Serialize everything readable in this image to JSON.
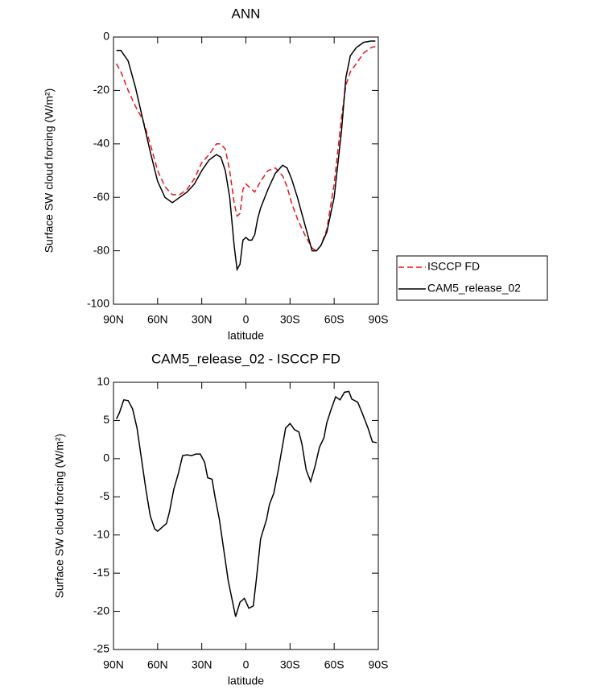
{
  "chart_data": [
    {
      "type": "line",
      "title": "ANN",
      "xlabel": "latitude",
      "ylabel": "Surface SW cloud forcing (W/m²)",
      "x": [
        88,
        85,
        80,
        75,
        70,
        65,
        60,
        55,
        50,
        45,
        40,
        35,
        30,
        25,
        20,
        17,
        14,
        11,
        8,
        6,
        4,
        2,
        0,
        -2,
        -4,
        -6,
        -8,
        -10,
        -15,
        -20,
        -25,
        -28,
        -31,
        -35,
        -40,
        -45,
        -48,
        -51,
        -55,
        -60,
        -65,
        -68,
        -71,
        -75,
        -80,
        -85,
        -88
      ],
      "series": [
        {
          "name": "ISCCP FD",
          "color": "#e8141e",
          "dash": true,
          "values": [
            -10,
            -13,
            -20,
            -26,
            -31,
            -40,
            -50,
            -56,
            -59,
            -59,
            -57,
            -53,
            -47,
            -44,
            -40,
            -40,
            -42,
            -50,
            -62,
            -67,
            -66,
            -57,
            -55,
            -56,
            -57,
            -58,
            -56,
            -54,
            -50,
            -49,
            -52,
            -56,
            -62,
            -68,
            -74,
            -79,
            -80,
            -78,
            -72,
            -55,
            -30,
            -18,
            -13,
            -10,
            -6,
            -4,
            -3.5
          ]
        },
        {
          "name": "CAM5_release_02",
          "color": "#000000",
          "dash": false,
          "values": [
            -5,
            -5,
            -9,
            -19,
            -31,
            -43,
            -54,
            -60,
            -62,
            -60,
            -58,
            -55,
            -50,
            -46,
            -44,
            -45,
            -50,
            -60,
            -78,
            -87,
            -85,
            -76,
            -75,
            -76,
            -76,
            -74,
            -68,
            -64,
            -57,
            -51,
            -48,
            -49,
            -53,
            -60,
            -70,
            -80,
            -80,
            -78,
            -73,
            -60,
            -35,
            -15,
            -7,
            -4,
            -2,
            -1.5,
            -1.5
          ]
        }
      ],
      "xlim": [
        90,
        -90
      ],
      "xticks": [
        {
          "value": 90,
          "label": "90N"
        },
        {
          "value": 60,
          "label": "60N"
        },
        {
          "value": 30,
          "label": "30N"
        },
        0,
        {
          "value": -30,
          "label": "30S"
        },
        {
          "value": -60,
          "label": "60S"
        },
        {
          "value": -90,
          "label": "90S"
        }
      ],
      "ylim": [
        -100,
        0
      ],
      "yticks": [
        -100,
        -80,
        -60,
        -40,
        -20,
        0
      ],
      "legend": "right"
    },
    {
      "type": "line",
      "title": "CAM5_release_02 - ISCCP FD",
      "xlabel": "latitude",
      "ylabel": "Surface SW cloud forcing (W/m²)",
      "x": [
        88,
        86,
        83,
        80,
        77,
        74,
        71,
        68,
        65,
        62,
        60,
        57,
        54,
        52,
        49,
        46,
        43,
        40,
        37,
        34,
        31,
        28,
        26,
        23,
        21,
        18,
        15,
        12,
        7,
        4,
        1,
        -2,
        -5,
        -7,
        -10,
        -14,
        -16,
        -19,
        -22,
        -25,
        -27,
        -30,
        -33,
        -36,
        -38,
        -41,
        -44,
        -47,
        -50,
        -53,
        -55,
        -58,
        -61,
        -64,
        -67,
        -70,
        -72,
        -76,
        -79,
        -83,
        -86,
        -89
      ],
      "values": [
        5.2,
        6,
        7.7,
        7.6,
        6.5,
        4,
        0,
        -4,
        -7.5,
        -9.2,
        -9.5,
        -9,
        -8.5,
        -7,
        -4,
        -2,
        0.4,
        0.5,
        0.4,
        0.6,
        0.6,
        -0.5,
        -2.5,
        -2.7,
        -5,
        -8,
        -12,
        -16,
        -20.7,
        -18.8,
        -18.3,
        -19.6,
        -19.3,
        -16,
        -10.5,
        -8,
        -6,
        -4.5,
        -1.5,
        1.8,
        4,
        4.6,
        3.8,
        3.5,
        2,
        -1.5,
        -3,
        -1,
        1.5,
        2.7,
        4.7,
        6.5,
        8.1,
        7.7,
        8.7,
        8.8,
        7.8,
        7.4,
        6,
        4,
        2.2,
        2.1
      ],
      "color": "#000000",
      "xlim": [
        90,
        -90
      ],
      "xticks": [
        {
          "value": 90,
          "label": "90N"
        },
        {
          "value": 60,
          "label": "60N"
        },
        {
          "value": 30,
          "label": "30N"
        },
        0,
        {
          "value": -30,
          "label": "30S"
        },
        {
          "value": -60,
          "label": "60S"
        },
        {
          "value": -90,
          "label": "90S"
        }
      ],
      "ylim": [
        -25,
        10
      ],
      "yticks": [
        -25,
        -20,
        -15,
        -10,
        -5,
        0,
        5,
        10
      ]
    }
  ]
}
